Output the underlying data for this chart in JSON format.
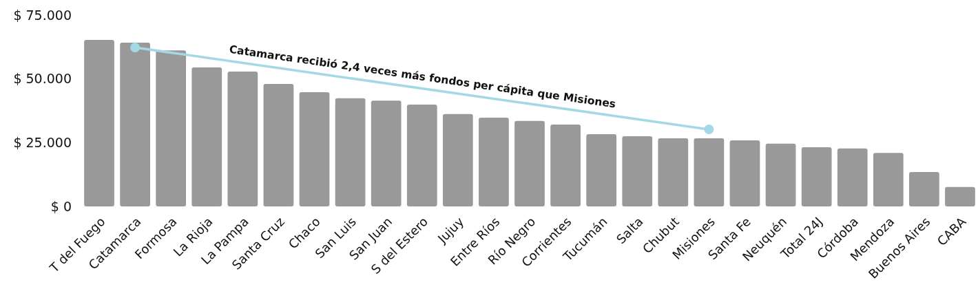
{
  "chart_data": {
    "type": "bar",
    "categories": [
      "T del Fuego",
      "Catamarca",
      "Formosa",
      "La Rioja",
      "La Pampa",
      "Santa Cruz",
      "Chaco",
      "San Luis",
      "San Juan",
      "S del Estero",
      "Jujuy",
      "Entre Ríos",
      "Río Negro",
      "Corrientes",
      "Tucumán",
      "Salta",
      "Chubut",
      "Misiones",
      "Santa Fe",
      "Neuquén",
      "Total 24J",
      "Córdoba",
      "Mendoza",
      "Buenos Aires",
      "CABA"
    ],
    "series": [
      {
        "color": "#999999",
        "values": [
          65300,
          64200,
          61200,
          54500,
          52900,
          48000,
          44800,
          42400,
          41500,
          39900,
          36200,
          34800,
          33500,
          32100,
          28300,
          27500,
          26700,
          26700,
          25900,
          24600,
          23200,
          22700,
          21000,
          13500,
          7600
        ]
      },
      {
        "type": "line",
        "color": "#a5d8e6",
        "x": [
          "Catamarca",
          "Misiones"
        ],
        "values": [
          62300,
          30200
        ]
      }
    ],
    "marker": "circle",
    "ylim": [
      0,
      75000
    ],
    "yticks": [
      {
        "value": 0,
        "label": "$ 0"
      },
      {
        "value": 25000,
        "label": "$ 25.000"
      },
      {
        "value": 50000,
        "label": "$ 50.000"
      },
      {
        "value": 75000,
        "label": "$ 75.000"
      }
    ],
    "annotations": [
      "Catamarca recibió 2,4 veces más fondos per cápita que Misiones"
    ],
    "grid": false
  }
}
